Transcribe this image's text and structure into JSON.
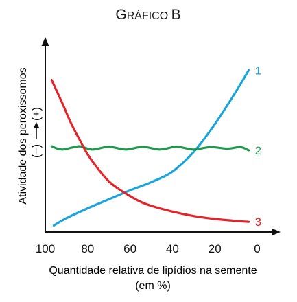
{
  "chart_data": {
    "type": "line",
    "title": "Gráfico B",
    "title_parts": {
      "first": "G",
      "rest": "RÁFICO ",
      "last": "B"
    },
    "xlabel": "Quantidade relativa de lipídios na semente",
    "xlabel_unit": "(em %)",
    "ylabel": "Atividade dos peroxissomos",
    "ylabel_scale": "(−) → (+)",
    "ylabel_scale_parts": {
      "low": "(−)",
      "high": "(+)"
    },
    "x_reversed": true,
    "xlim": [
      100,
      0
    ],
    "x_ticks": [
      100,
      80,
      60,
      40,
      20,
      0
    ],
    "y_ticks": [],
    "ylim": [
      0,
      10
    ],
    "grid": false,
    "legend": "none",
    "series": [
      {
        "name": "1",
        "color": "#1AA5DA",
        "x": [
          96,
          90,
          80,
          70,
          60,
          50,
          40,
          30,
          20,
          10,
          4
        ],
        "y": [
          0.4,
          0.85,
          1.45,
          2.0,
          2.55,
          3.05,
          3.7,
          4.9,
          6.6,
          8.6,
          9.9
        ]
      },
      {
        "name": "2",
        "color": "#1E9A4C",
        "x": [
          97,
          92,
          84,
          78,
          70,
          62,
          54,
          46,
          38,
          30,
          22,
          14,
          8,
          4
        ],
        "y": [
          5.25,
          5.05,
          5.25,
          5.05,
          5.22,
          5.05,
          5.22,
          5.05,
          5.22,
          5.05,
          5.2,
          5.1,
          5.2,
          5.0
        ]
      },
      {
        "name": "3",
        "color": "#E2242B",
        "x": [
          97,
          92,
          88,
          84,
          80,
          75,
          70,
          65,
          60,
          55,
          50,
          40,
          30,
          20,
          10,
          4
        ],
        "y": [
          9.3,
          7.9,
          6.7,
          5.7,
          4.75,
          3.85,
          3.1,
          2.6,
          2.2,
          1.85,
          1.6,
          1.25,
          0.98,
          0.8,
          0.68,
          0.62
        ]
      }
    ]
  }
}
